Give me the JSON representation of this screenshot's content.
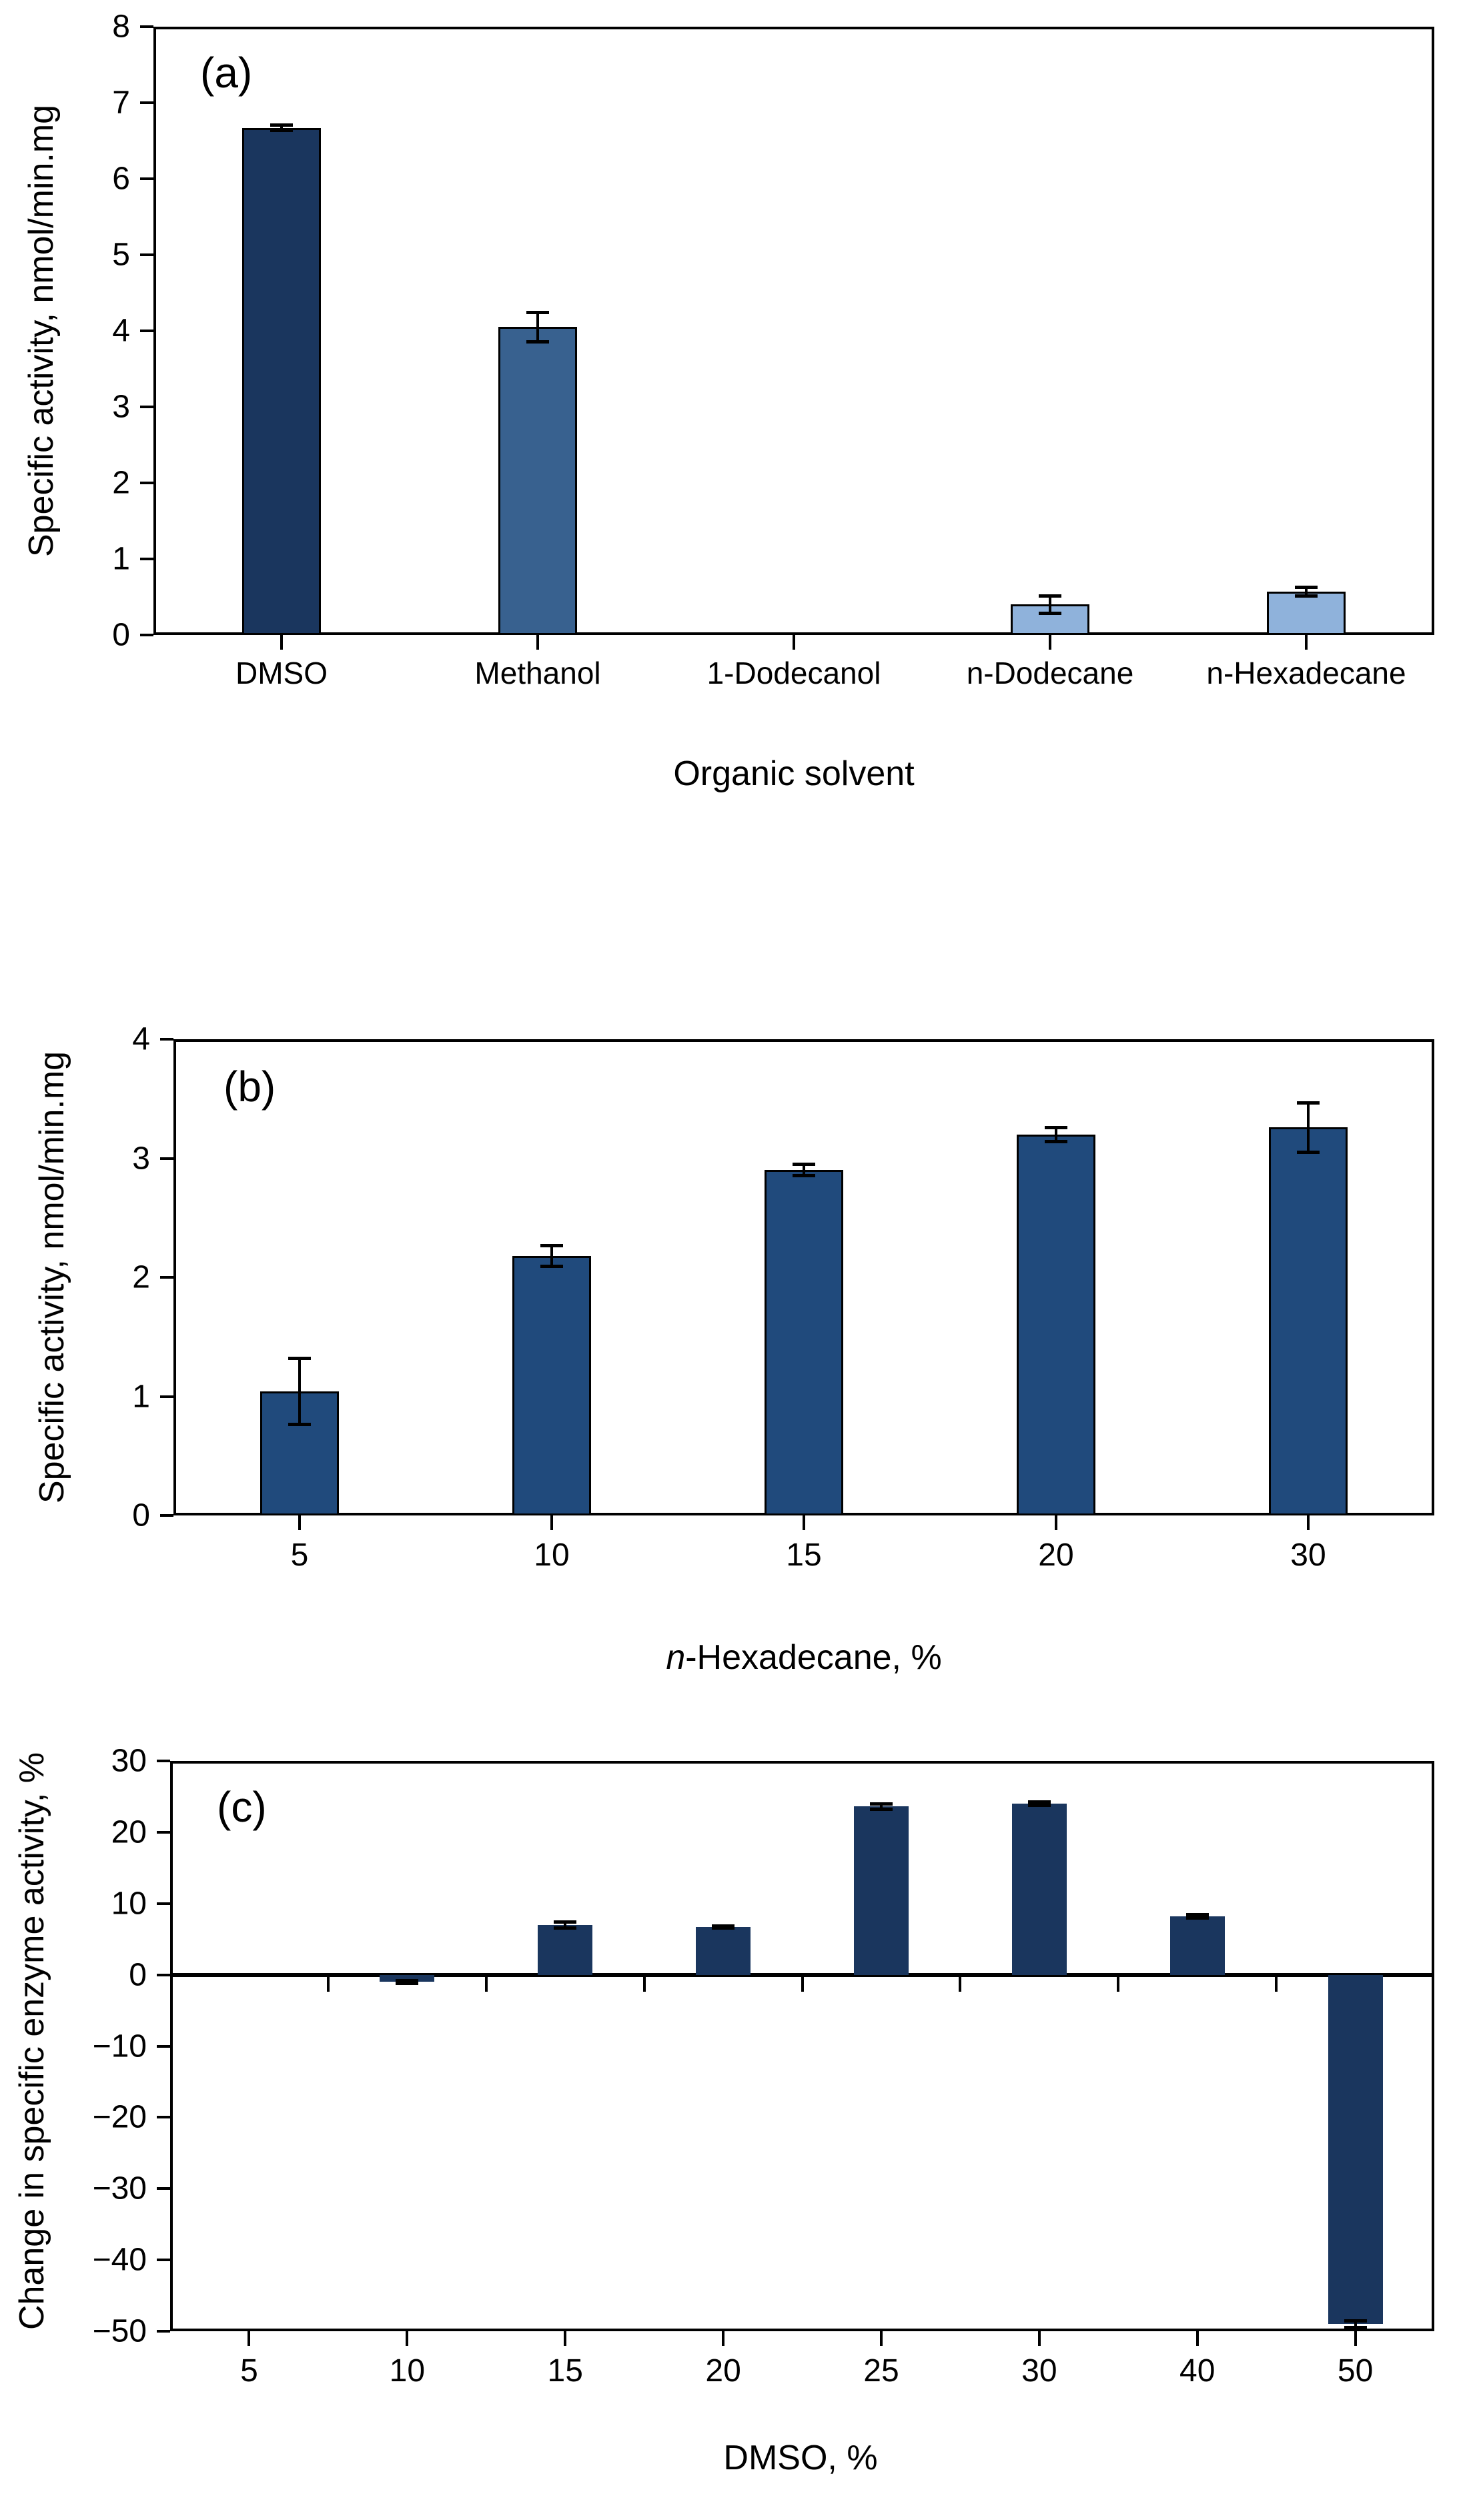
{
  "figure": {
    "background": "#ffffff",
    "axis_color": "#000000",
    "panel_labels": [
      "(a)",
      "(b)",
      "(c)"
    ]
  },
  "chart_data": [
    {
      "id": "a",
      "type": "bar",
      "panel_label": "(a)",
      "title": "",
      "ylabel": "Specific activity, nmol/min.mg",
      "xlabel": "Organic solvent",
      "ylim": [
        0,
        8
      ],
      "yticks": [
        0,
        1,
        2,
        3,
        4,
        5,
        6,
        7,
        8
      ],
      "grid": false,
      "legend": null,
      "categories": [
        "DMSO",
        "Methanol",
        "1-Dodecanol",
        "n-Dodecane",
        "n-Hexadecane"
      ],
      "values": [
        6.67,
        4.05,
        0,
        0.4,
        0.57
      ],
      "errors": [
        0.04,
        0.2,
        0,
        0.12,
        0.06
      ],
      "bar_colors": [
        "#1A365E",
        "#38618F",
        "#8FB2DB",
        "#8FB2DB",
        "#8FB2DB"
      ],
      "bar_border_color": "#000000"
    },
    {
      "id": "b",
      "type": "bar",
      "panel_label": "(b)",
      "title": "",
      "ylabel": "Specific activity, nmol/min.mg",
      "xlabel_italic": "n",
      "xlabel_rest": "-Hexadecane, %",
      "ylim": [
        0,
        4
      ],
      "yticks": [
        0,
        1,
        2,
        3,
        4
      ],
      "grid": false,
      "legend": null,
      "categories": [
        "5",
        "10",
        "15",
        "20",
        "30"
      ],
      "values": [
        1.04,
        2.18,
        2.9,
        3.2,
        3.26
      ],
      "errors": [
        0.28,
        0.09,
        0.05,
        0.06,
        0.21
      ],
      "bar_colors": [
        "#204A7C",
        "#204A7C",
        "#204A7C",
        "#204A7C",
        "#204A7C"
      ],
      "bar_border_color": "#000000"
    },
    {
      "id": "c",
      "type": "bar",
      "panel_label": "(c)",
      "title": "",
      "ylabel": "Change in specific enzyme activity, %",
      "xlabel": "DMSO, %",
      "ylim": [
        -50,
        30
      ],
      "yticks": [
        30,
        20,
        10,
        0,
        -10,
        -20,
        -30,
        -40,
        -50
      ],
      "grid": false,
      "legend": null,
      "categories": [
        "5",
        "10",
        "15",
        "20",
        "25",
        "30",
        "40",
        "50"
      ],
      "values": [
        0,
        -1.0,
        7.0,
        6.7,
        23.6,
        24.0,
        8.2,
        -49.0
      ],
      "errors": [
        0,
        0.25,
        0.45,
        0.2,
        0.4,
        0.3,
        0.25,
        0.5
      ],
      "bar_colors": [
        "#1A365E",
        "#1A365E",
        "#1A365E",
        "#1A365E",
        "#1A365E",
        "#1A365E",
        "#1A365E",
        "#1A365E"
      ],
      "bar_border_color": null
    }
  ]
}
